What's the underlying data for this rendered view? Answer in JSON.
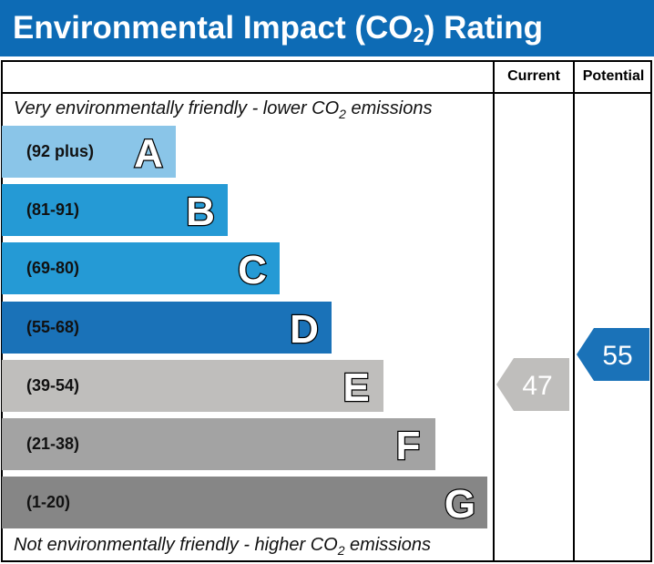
{
  "title": {
    "main": "Environmental Impact (CO",
    "sub": "2",
    "end": ") Rating"
  },
  "header": {
    "current": "Current",
    "potential": "Potential"
  },
  "top_caption": {
    "a": "Very environmentally friendly - lower CO",
    "sub": "2",
    "b": " emissions"
  },
  "bottom_caption": {
    "a": "Not environmentally friendly - higher CO",
    "sub": "2",
    "b": " emissions"
  },
  "chart_data": {
    "type": "bar",
    "bands": [
      {
        "letter": "A",
        "range": "(92 plus)",
        "color": "#8ac5e8"
      },
      {
        "letter": "B",
        "range": "(81-91)",
        "color": "#259ad5"
      },
      {
        "letter": "C",
        "range": "(69-80)",
        "color": "#259ad5"
      },
      {
        "letter": "D",
        "range": "(55-68)",
        "color": "#1a72b8"
      },
      {
        "letter": "E",
        "range": "(39-54)",
        "color": "#bfbebc"
      },
      {
        "letter": "F",
        "range": "(21-38)",
        "color": "#a3a3a3"
      },
      {
        "letter": "G",
        "range": "(1-20)",
        "color": "#868686"
      }
    ],
    "current": {
      "value": "47",
      "band": "E",
      "color": "#bfbebc"
    },
    "potential": {
      "value": "55",
      "band": "D",
      "color": "#1a72b8"
    }
  }
}
